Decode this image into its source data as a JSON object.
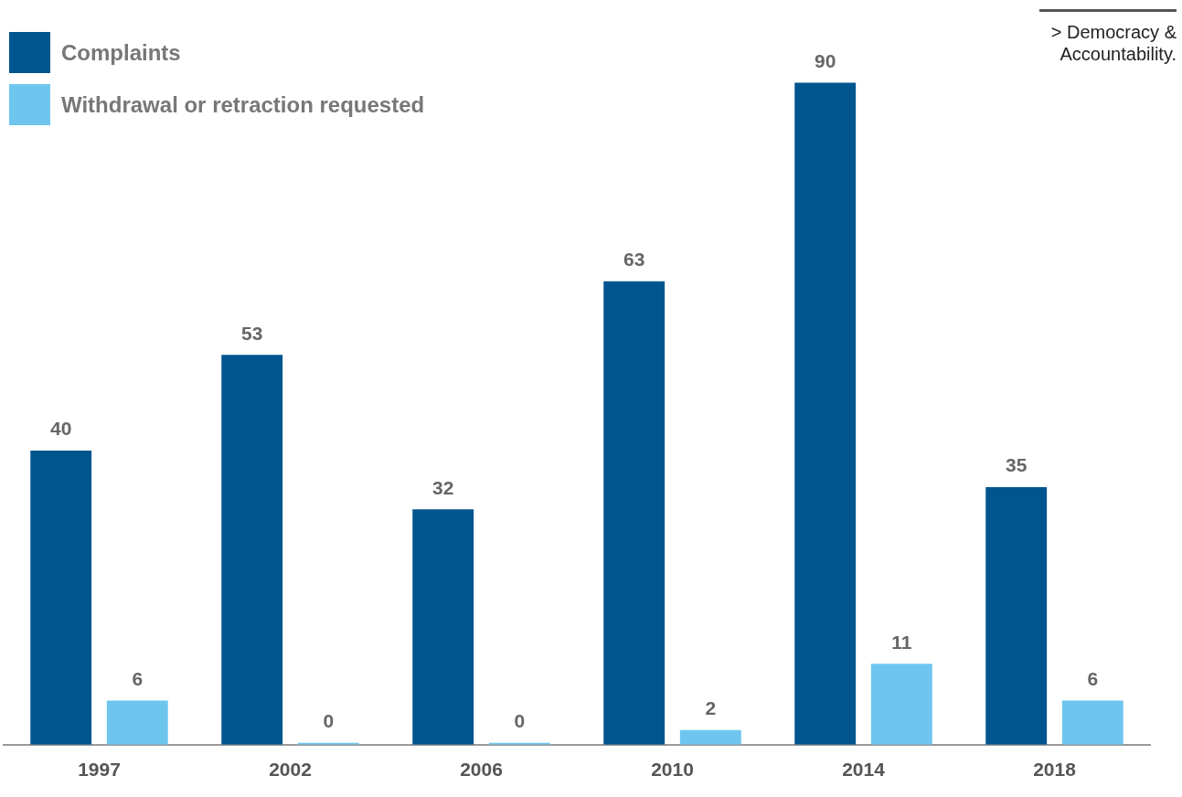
{
  "chart_data": {
    "type": "bar",
    "categories": [
      "1997",
      "2002",
      "2006",
      "2010",
      "2014",
      "2018"
    ],
    "series": [
      {
        "name": "Complaints",
        "color": "#00558f",
        "values": [
          40,
          53,
          32,
          63,
          90,
          35
        ]
      },
      {
        "name": "Withdrawal or retraction requested",
        "color": "#6ec6ef",
        "values": [
          6,
          0,
          0,
          2,
          11,
          6
        ]
      }
    ],
    "data_labels": true,
    "legend": "top left",
    "grid": false,
    "annotations": [
      "> Democracy & Accountability."
    ]
  }
}
